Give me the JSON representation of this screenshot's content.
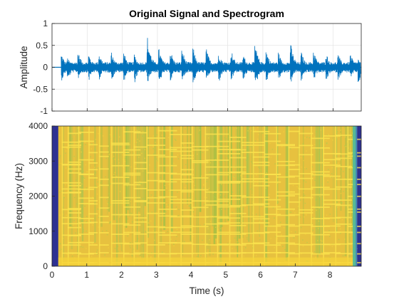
{
  "chart_data": [
    {
      "type": "line",
      "title": "Original Signal and Spectrogram",
      "xlabel": "",
      "ylabel": "Amplitude",
      "xlim": [
        0,
        8.8
      ],
      "ylim": [
        -1,
        1
      ],
      "yticks": [
        -1,
        -0.5,
        0,
        0.5,
        1
      ],
      "ytick_labels": [
        "-1",
        "-0.5",
        "0",
        "0.5",
        "1"
      ],
      "xticks": [
        0,
        1,
        2,
        3,
        4,
        5,
        6,
        7,
        8
      ],
      "grid": true,
      "line_color": "#0072BD",
      "signal_start": 0.26,
      "signal_end": 8.78,
      "typical_envelope": 0.12,
      "peaks": [
        {
          "x": 0.28,
          "max": 0.3,
          "min": -0.3
        },
        {
          "x": 0.45,
          "max": 0.22,
          "min": -0.3
        },
        {
          "x": 0.75,
          "max": 0.35,
          "min": -0.25
        },
        {
          "x": 1.05,
          "max": 0.3,
          "min": -0.3
        },
        {
          "x": 1.35,
          "max": 0.32,
          "min": -0.28
        },
        {
          "x": 1.7,
          "max": 0.35,
          "min": -0.3
        },
        {
          "x": 2.05,
          "max": 0.35,
          "min": -0.32
        },
        {
          "x": 2.35,
          "max": 0.3,
          "min": -0.35
        },
        {
          "x": 2.72,
          "max": 0.7,
          "min": -0.35
        },
        {
          "x": 3.05,
          "max": 0.42,
          "min": -0.4
        },
        {
          "x": 3.38,
          "max": 0.38,
          "min": -0.32
        },
        {
          "x": 3.7,
          "max": 0.45,
          "min": -0.35
        },
        {
          "x": 4.02,
          "max": 0.45,
          "min": -0.4
        },
        {
          "x": 4.4,
          "max": 0.42,
          "min": -0.3
        },
        {
          "x": 4.75,
          "max": 0.35,
          "min": -0.35
        },
        {
          "x": 5.1,
          "max": 0.42,
          "min": -0.32
        },
        {
          "x": 5.45,
          "max": 0.3,
          "min": -0.3
        },
        {
          "x": 5.78,
          "max": 0.55,
          "min": -0.5
        },
        {
          "x": 6.1,
          "max": 0.4,
          "min": -0.35
        },
        {
          "x": 6.45,
          "max": 0.35,
          "min": -0.32
        },
        {
          "x": 6.8,
          "max": 0.52,
          "min": -0.35
        },
        {
          "x": 7.1,
          "max": 0.35,
          "min": -0.32
        },
        {
          "x": 7.45,
          "max": 0.4,
          "min": -0.3
        },
        {
          "x": 7.8,
          "max": 0.35,
          "min": -0.35
        },
        {
          "x": 8.15,
          "max": 0.3,
          "min": -0.3
        },
        {
          "x": 8.5,
          "max": 0.3,
          "min": -0.28
        },
        {
          "x": 8.72,
          "max": 0.2,
          "min": -0.4
        }
      ]
    },
    {
      "type": "heatmap",
      "title": "",
      "xlabel": "Time (s)",
      "ylabel": "Frequency (Hz)",
      "xlim": [
        0,
        8.9
      ],
      "ylim": [
        0,
        4000
      ],
      "xticks": [
        0,
        1,
        2,
        3,
        4,
        5,
        6,
        7,
        8
      ],
      "xtick_labels": [
        "0",
        "1",
        "2",
        "3",
        "4",
        "5",
        "6",
        "7",
        "8"
      ],
      "yticks": [
        0,
        1000,
        2000,
        3000,
        4000
      ],
      "ytick_labels": [
        "0",
        "1000",
        "2000",
        "3000",
        "4000"
      ],
      "grid": false,
      "colormap": "parula",
      "low_color": "#2E3192",
      "mid_color": "#7CC14A",
      "high_color": "#F4C430",
      "active_start": 0.18,
      "active_end": 8.78,
      "note_onsets": [
        0.28,
        0.45,
        0.75,
        1.05,
        1.35,
        1.7,
        2.05,
        2.35,
        2.72,
        3.05,
        3.38,
        3.7,
        4.02,
        4.4,
        4.75,
        5.1,
        5.45,
        5.78,
        6.1,
        6.45,
        6.8,
        7.1,
        7.45,
        7.8,
        8.15,
        8.5
      ]
    }
  ]
}
